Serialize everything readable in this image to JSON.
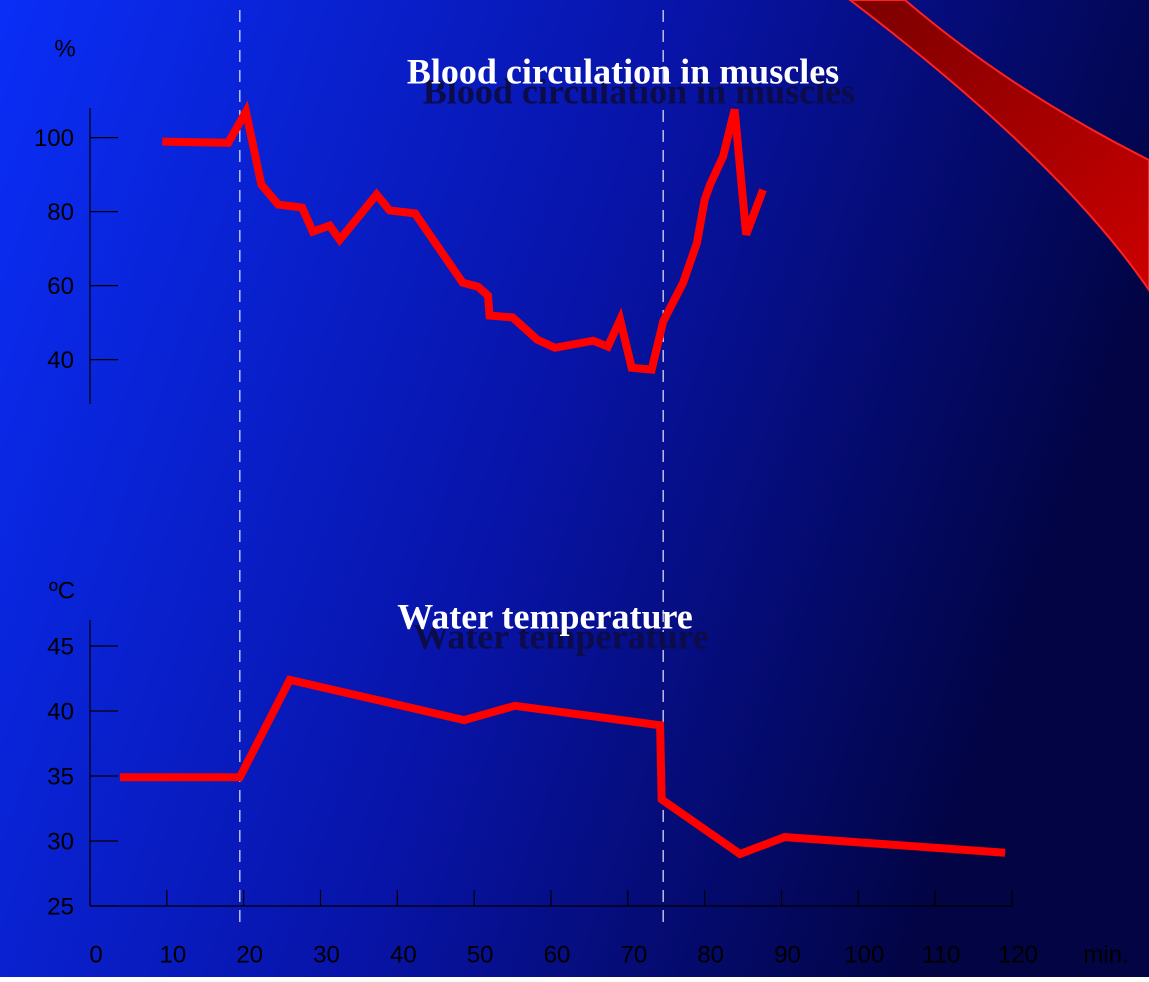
{
  "chart_data": [
    {
      "type": "line",
      "title": "Blood circulation in muscles",
      "ylabel": "%",
      "xlim": [
        0,
        120
      ],
      "ylim": [
        28,
        108
      ],
      "yticks": [
        40,
        60,
        80,
        100
      ],
      "vlines": [
        19.5,
        74.6
      ],
      "x": [
        9.4,
        18.0,
        20.3,
        22.3,
        24.5,
        27.6,
        29.0,
        31.2,
        32.5,
        37.3,
        39.0,
        42.3,
        48.5,
        50.5,
        51.8,
        52.0,
        55.0,
        58.2,
        60.5,
        65.5,
        67.4,
        69.0,
        70.5,
        73.1,
        74.6,
        77.2,
        79.0,
        80.0,
        80.7,
        82.4,
        83.9,
        85.4,
        87.6
      ],
      "series": [
        {
          "color": "#ff0000",
          "values": [
            98.9,
            98.6,
            107,
            87.3,
            81.9,
            81.1,
            74.6,
            76.2,
            72.4,
            84.6,
            80.3,
            79.5,
            60.8,
            59.7,
            57.3,
            51.9,
            51.4,
            45.4,
            43.2,
            45.1,
            43.5,
            50.8,
            37.8,
            37.3,
            50.3,
            60.8,
            71.6,
            83.2,
            87.3,
            94.9,
            107.6,
            73.8,
            85.9
          ]
        }
      ]
    },
    {
      "type": "line",
      "title": "Water temperature",
      "ylabel": "ºC",
      "xlabel": "min.",
      "xlim": [
        0,
        120
      ],
      "ylim": [
        25,
        47
      ],
      "yticks": [
        25,
        30,
        35,
        40,
        45
      ],
      "xticks": [
        0,
        10,
        20,
        30,
        40,
        50,
        60,
        70,
        80,
        90,
        100,
        110,
        120
      ],
      "x": [
        3.9,
        19.5,
        26.0,
        48.7,
        55.3,
        74.2,
        74.4,
        84.6,
        90.4,
        119.1
      ],
      "series": [
        {
          "color": "#ff0000",
          "values": [
            34.9,
            34.9,
            42.4,
            39.3,
            40.4,
            38.9,
            33.2,
            29.0,
            30.3,
            29.1
          ]
        }
      ]
    }
  ]
}
